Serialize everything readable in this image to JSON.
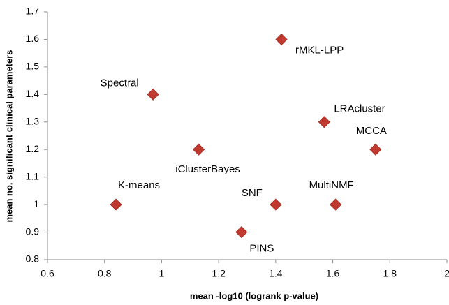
{
  "chart_data": {
    "type": "scatter",
    "xlabel": "mean -log10 (logrank p-value)",
    "ylabel": "mean no. significant clinical parameters",
    "color": "#c0392f",
    "xlim": [
      0.6,
      2
    ],
    "xticks": [
      0.6,
      0.8,
      1,
      1.2,
      1.4,
      1.6,
      1.8,
      2
    ],
    "ylim": [
      0.8,
      1.7
    ],
    "yticks": [
      0.8,
      0.9,
      1,
      1.1,
      1.2,
      1.3,
      1.4,
      1.5,
      1.6,
      1.7
    ],
    "points": [
      {
        "label": "rMKL-LPP",
        "x": 1.42,
        "y": 1.6
      },
      {
        "label": "Spectral",
        "x": 0.97,
        "y": 1.4
      },
      {
        "label": "LRAcluster",
        "x": 1.57,
        "y": 1.3
      },
      {
        "label": "MCCA",
        "x": 1.75,
        "y": 1.2
      },
      {
        "label": "iClusterBayes",
        "x": 1.13,
        "y": 1.2
      },
      {
        "label": "K-means",
        "x": 0.84,
        "y": 1
      },
      {
        "label": "SNF",
        "x": 1.4,
        "y": 1
      },
      {
        "label": "MultiNMF",
        "x": 1.61,
        "y": 1
      },
      {
        "label": "PINS",
        "x": 1.28,
        "y": 0.9
      }
    ]
  }
}
